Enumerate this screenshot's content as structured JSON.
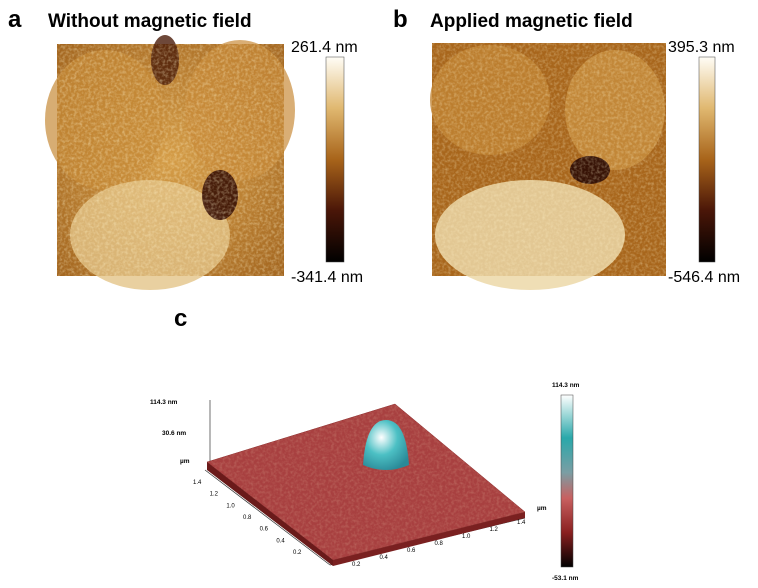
{
  "panels": [
    {
      "letter": "a",
      "title": "Without magnetic field",
      "colorbar_max": "261.4 nm",
      "colorbar_min": "-341.4 nm"
    },
    {
      "letter": "b",
      "title": "Applied magnetic field",
      "colorbar_max": "395.3 nm",
      "colorbar_min": "-546.4 nm"
    },
    {
      "letter": "c",
      "z_axis": {
        "max": "114.3 nm",
        "mid": "30.6 nm",
        "unit": "µm"
      },
      "y_axis_ticks": [
        "1.4",
        "1.2",
        "1.0",
        "0.8",
        "0.6",
        "0.4",
        "0.2"
      ],
      "x_axis_ticks": [
        "0.2",
        "0.4",
        "0.6",
        "0.8",
        "1.0",
        "1.2",
        "1.4"
      ],
      "x_axis_unit": "µm",
      "colorbar_max": "114.3 nm",
      "colorbar_min": "-53.1 nm"
    }
  ]
}
